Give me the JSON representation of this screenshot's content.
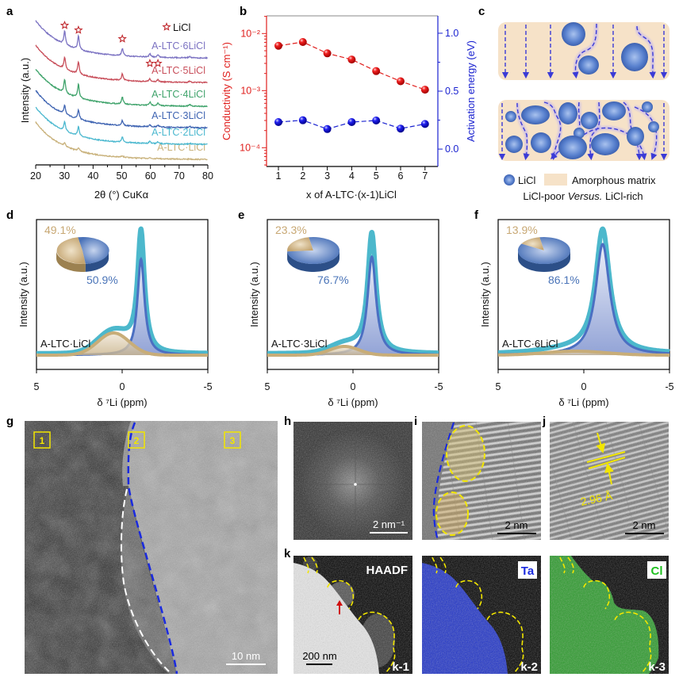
{
  "panel_labels": {
    "a": "a",
    "b": "b",
    "c": "c",
    "d": "d",
    "e": "e",
    "f": "f",
    "g": "g",
    "h": "h",
    "i": "i",
    "j": "j",
    "k": "k"
  },
  "chart_data": [
    {
      "panel": "a",
      "type": "line",
      "title": "",
      "xlabel": "2θ (°) CuKα",
      "ylabel": "Intensity (a.u.)",
      "xlim": [
        20,
        80
      ],
      "xticks": [
        "20",
        "30",
        "40",
        "50",
        "60",
        "70",
        "80"
      ],
      "legend": {
        "marker": "star-icon",
        "label": "LiCl",
        "color": "#c0282d",
        "placement": "top-right"
      },
      "licl_reflections": [
        30.1,
        34.9,
        50.2,
        59.8,
        62.6
      ],
      "series": [
        {
          "name": "A-LTC·LiCl",
          "color": "#c9b27c"
        },
        {
          "name": "A-LTC·2LiCl",
          "color": "#4bb8cf"
        },
        {
          "name": "A-LTC·3LiCl",
          "color": "#3f64b2"
        },
        {
          "name": "A-LTC·4LiCl",
          "color": "#3fa36b"
        },
        {
          "name": "A-LTC·5LiCl",
          "color": "#c84e5a"
        },
        {
          "name": "A-LTC·6LiCl",
          "color": "#7b72c2"
        }
      ]
    },
    {
      "panel": "b",
      "type": "line",
      "xlabel": "x of A-LTC·(x-1)LiCl",
      "x": [
        1,
        2,
        3,
        4,
        5,
        6,
        7
      ],
      "xticks": [
        "1",
        "2",
        "3",
        "4",
        "5",
        "6",
        "7"
      ],
      "ylabel_left": "Conductivity (S cm⁻¹)",
      "ylabel_right": "Activation energy (eV)",
      "yscale_left": "log",
      "ylim_left": [
        4.7e-05,
        0.0204
      ],
      "yticks_left": [
        "10⁻²",
        "10⁻³",
        "10⁻⁴"
      ],
      "ylim_right": [
        -0.15,
        1.15
      ],
      "yticks_right": [
        "1.0",
        "0.5",
        "0.0"
      ],
      "series": [
        {
          "axis": "left",
          "color": "#e0201e",
          "values": [
            0.0061,
            0.0071,
            0.0045,
            0.0035,
            0.0022,
            0.00146,
            0.00104
          ]
        },
        {
          "axis": "right",
          "color": "#1a22d0",
          "values": [
            0.233,
            0.249,
            0.173,
            0.233,
            0.247,
            0.177,
            0.217
          ]
        }
      ]
    },
    {
      "panel": "d",
      "type": "pie",
      "sample": "A-LTC·LiCl",
      "xlabel": "δ ⁷Li (ppm)",
      "ylabel": "Intensity (a.u.)",
      "xlim": [
        5,
        -5
      ],
      "xticks": [
        "5",
        "0",
        "-5"
      ],
      "slices": [
        {
          "label": "49.1%",
          "value": 49.1,
          "color": "#c8a874"
        },
        {
          "label": "50.9%",
          "value": 50.9,
          "color": "#4a74b8"
        }
      ]
    },
    {
      "panel": "e",
      "type": "pie",
      "sample": "A-LTC·3LiCl",
      "xlabel": "δ ⁷Li (ppm)",
      "ylabel": "Intensity (a.u.)",
      "xlim": [
        5,
        -5
      ],
      "xticks": [
        "5",
        "0",
        "-5"
      ],
      "slices": [
        {
          "label": "23.3%",
          "value": 23.3,
          "color": "#c8a874"
        },
        {
          "label": "76.7%",
          "value": 76.7,
          "color": "#4a74b8"
        }
      ]
    },
    {
      "panel": "f",
      "type": "pie",
      "sample": "A-LTC·6LiCl",
      "xlabel": "δ ⁷Li (ppm)",
      "ylabel": "Intensity (a.u.)",
      "xlim": [
        5,
        -5
      ],
      "xticks": [
        "5",
        "0",
        "-5"
      ],
      "slices": [
        {
          "label": "13.9%",
          "value": 13.9,
          "color": "#c8a874"
        },
        {
          "label": "86.1%",
          "value": 86.1,
          "color": "#4a74b8"
        }
      ]
    }
  ],
  "schematic": {
    "legend_licl": "LiCl",
    "legend_matrix": "Amorphous matrix",
    "caption_pre": "LiCl-poor ",
    "caption_versus": "Versus.",
    "caption_post": " LiCl-rich",
    "licl_color": "#3f68bd",
    "matrix_color": "#f6e2c8"
  },
  "micrographs": {
    "g": {
      "regions": [
        "1",
        "2",
        "3"
      ],
      "scale_bar": "10 nm"
    },
    "h": {
      "scale_bar": "2 nm⁻¹"
    },
    "i": {
      "scale_bar": "2 nm"
    },
    "j": {
      "scale_bar": "2 nm",
      "d_spacing": "2.96 Å"
    },
    "k": {
      "haadf": "HAADF",
      "ta": "Ta",
      "cl": "Cl",
      "sub": [
        "k-1",
        "k-2",
        "k-3"
      ],
      "scale_bar": "200 nm"
    }
  }
}
